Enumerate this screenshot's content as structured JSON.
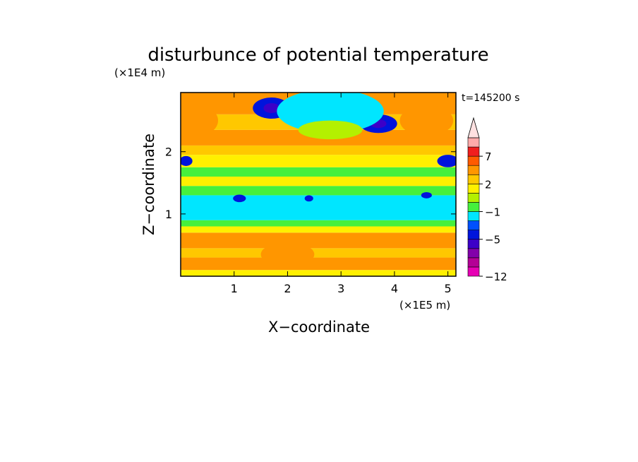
{
  "chart_data": {
    "type": "heatmap",
    "title": "disturbunce of potential temperature",
    "y_unit": "(×1E4 m)",
    "x_unit": "(×1E5 m)",
    "xlabel": "X−coordinate",
    "ylabel": "Z−coordinate",
    "time_label": "t=145200 s",
    "xlim": [
      0,
      5.15
    ],
    "ylim": [
      0,
      2.95
    ],
    "x_ticks": [
      {
        "value": 1,
        "label": "1"
      },
      {
        "value": 2,
        "label": "2"
      },
      {
        "value": 3,
        "label": "3"
      },
      {
        "value": 4,
        "label": "4"
      },
      {
        "value": 5,
        "label": "5"
      }
    ],
    "y_ticks": [
      {
        "value": 1,
        "label": "1"
      },
      {
        "value": 2,
        "label": "2"
      }
    ],
    "colorbar": {
      "levels": [
        -12,
        -10,
        -8,
        -6,
        -5,
        -4,
        -3,
        -1,
        0,
        1,
        2,
        3,
        5,
        7,
        9,
        11
      ],
      "colors": [
        "#e600b4",
        "#b40096",
        "#8200aa",
        "#3c00c8",
        "#0014dc",
        "#0050ff",
        "#00e6ff",
        "#46f03c",
        "#b4f000",
        "#fff000",
        "#ffc800",
        "#ff9600",
        "#ff5a00",
        "#f01e1e",
        "#ffaaaa"
      ],
      "extend_max_color": "#ffe1e1",
      "labels": [
        {
          "value": -12,
          "label": "−12"
        },
        {
          "value": -5,
          "label": "−5"
        },
        {
          "value": -1,
          "label": "−1"
        },
        {
          "value": 2,
          "label": "2"
        },
        {
          "value": 7,
          "label": "7"
        }
      ]
    },
    "field_layers": [
      {
        "z": [
          0.0,
          0.1
        ],
        "value": 1.5
      },
      {
        "z": [
          0.1,
          0.3
        ],
        "value": 3.5
      },
      {
        "z": [
          0.3,
          0.45
        ],
        "value": 2.5
      },
      {
        "z": [
          0.45,
          0.7
        ],
        "value": 3.2
      },
      {
        "z": [
          0.7,
          0.8
        ],
        "value": 1.5
      },
      {
        "z": [
          0.8,
          0.9
        ],
        "value": -0.5
      },
      {
        "z": [
          0.9,
          1.3
        ],
        "value": -1.5
      },
      {
        "z": [
          1.3,
          1.45
        ],
        "value": -0.5
      },
      {
        "z": [
          1.45,
          1.6
        ],
        "value": 1.5
      },
      {
        "z": [
          1.6,
          1.75
        ],
        "value": -0.5
      },
      {
        "z": [
          1.75,
          1.95
        ],
        "value": 1.5
      },
      {
        "z": [
          1.95,
          2.1
        ],
        "value": 2.5
      },
      {
        "z": [
          2.1,
          2.35
        ],
        "value": 3.5
      },
      {
        "z": [
          2.35,
          2.6
        ],
        "value": 2.5
      },
      {
        "z": [
          2.6,
          2.95
        ],
        "value": 3.5
      }
    ],
    "field_features": [
      {
        "x": 1.7,
        "z": 2.7,
        "rx": 0.35,
        "rz": 0.17,
        "value": -4.5
      },
      {
        "x": 1.7,
        "z": 2.7,
        "rx": 0.15,
        "rz": 0.08,
        "value": -5.5
      },
      {
        "x": 3.7,
        "z": 2.45,
        "rx": 0.35,
        "rz": 0.15,
        "value": -4.5
      },
      {
        "x": 3.7,
        "z": 2.45,
        "rx": 0.15,
        "rz": 0.07,
        "value": -5.5
      },
      {
        "x": 2.8,
        "z": 2.65,
        "rx": 1.0,
        "rz": 0.35,
        "value": -1.5
      },
      {
        "x": 2.8,
        "z": 2.35,
        "rx": 0.6,
        "rz": 0.15,
        "value": 0.5
      },
      {
        "x": 5.0,
        "z": 1.85,
        "rx": 0.2,
        "rz": 0.1,
        "value": -4.5
      },
      {
        "x": 0.1,
        "z": 1.85,
        "rx": 0.12,
        "rz": 0.08,
        "value": -4.5
      },
      {
        "x": 1.1,
        "z": 1.25,
        "rx": 0.12,
        "rz": 0.06,
        "value": -4.5
      },
      {
        "x": 2.4,
        "z": 1.25,
        "rx": 0.08,
        "rz": 0.05,
        "value": -4.5
      },
      {
        "x": 4.6,
        "z": 1.3,
        "rx": 0.1,
        "rz": 0.05,
        "value": -4.5
      },
      {
        "x": 4.6,
        "z": 2.5,
        "rx": 0.5,
        "rz": 0.25,
        "value": 4.5
      },
      {
        "x": 0.3,
        "z": 2.5,
        "rx": 0.4,
        "rz": 0.25,
        "value": 4.5
      },
      {
        "x": 2.0,
        "z": 0.35,
        "rx": 0.5,
        "rz": 0.2,
        "value": 3.5
      }
    ]
  }
}
